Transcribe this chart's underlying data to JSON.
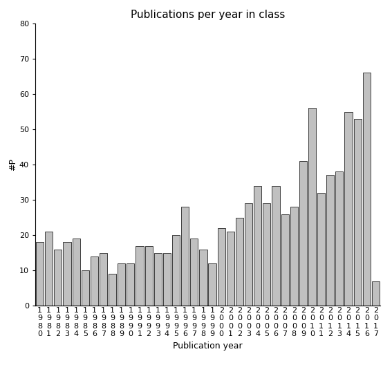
{
  "title": "Publications per year in class",
  "xlabel": "Publication year",
  "ylabel": "#P",
  "years": [
    "1980",
    "1981",
    "1982",
    "1983",
    "1984",
    "1985",
    "1986",
    "1987",
    "1988",
    "1989",
    "1990",
    "1991",
    "1992",
    "1993",
    "1994",
    "1995",
    "1996",
    "1997",
    "1998",
    "1999",
    "2000",
    "2001",
    "2002",
    "2003",
    "2004",
    "2005",
    "2006",
    "2007",
    "2008",
    "2009",
    "2010",
    "2011",
    "2012",
    "2013",
    "2014",
    "2015",
    "2016",
    "2017"
  ],
  "values": [
    18,
    21,
    16,
    18,
    19,
    10,
    14,
    15,
    9,
    12,
    12,
    17,
    17,
    15,
    15,
    20,
    28,
    19,
    16,
    12,
    22,
    21,
    25,
    29,
    34,
    29,
    34,
    26,
    28,
    41,
    56,
    32,
    37,
    38,
    55,
    53,
    66,
    7
  ],
  "bar_color": "#c0c0c0",
  "bar_edge_color": "#000000",
  "ylim": [
    0,
    80
  ],
  "yticks": [
    0,
    10,
    20,
    30,
    40,
    50,
    60,
    70,
    80
  ],
  "bg_color": "#ffffff",
  "title_fontsize": 11,
  "label_fontsize": 9,
  "tick_fontsize": 8
}
